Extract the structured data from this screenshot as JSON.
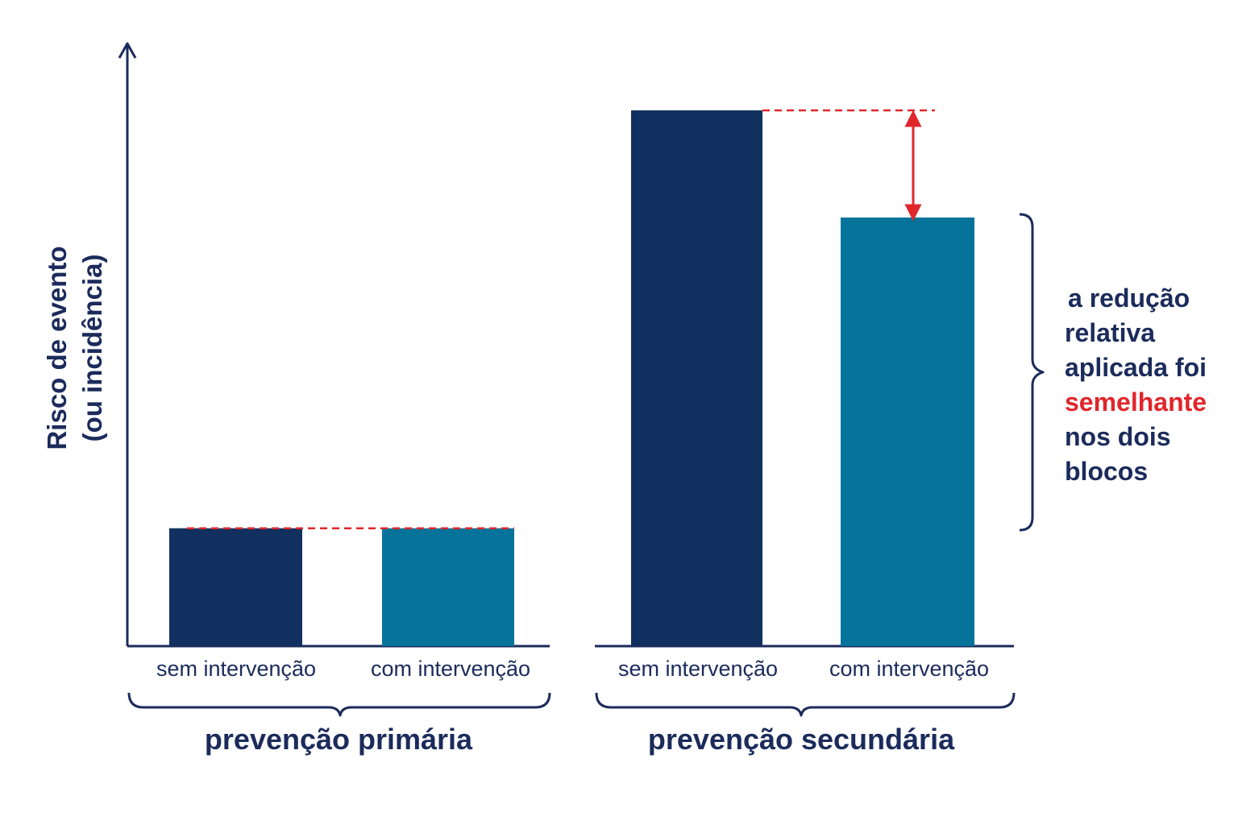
{
  "chart_data": {
    "type": "bar",
    "ylabel_lines": [
      "Risco de evento",
      "(ou incidência)"
    ],
    "ylim": [
      0,
      100
    ],
    "groups": [
      {
        "name": "prevenção primária",
        "categories": [
          "sem intervenção",
          "com intervenção"
        ],
        "values": [
          22,
          22
        ]
      },
      {
        "name": "prevenção secundária",
        "categories": [
          "sem intervenção",
          "com intervenção"
        ],
        "values": [
          100,
          80
        ]
      }
    ],
    "annotation": {
      "lines": [
        "a redução",
        "relativa",
        "aplicada foi",
        "semelhante",
        "nos dois",
        "blocos"
      ],
      "highlight_index": 3
    },
    "colors": {
      "sem_intervencao": "#12305f",
      "com_intervencao": "#05739a",
      "axis": "#1b2b5b",
      "reference_line": "#e0262b"
    }
  }
}
